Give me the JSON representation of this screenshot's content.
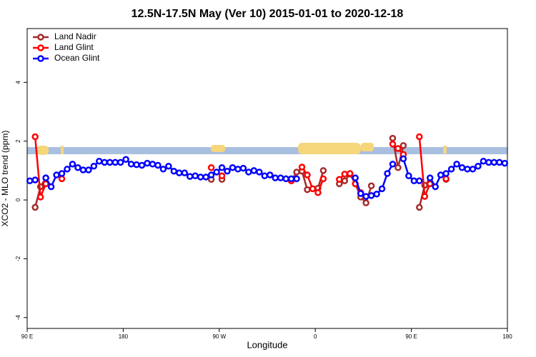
{
  "chart_data": {
    "type": "line",
    "title": "12.5N-17.5N May (Ver 10)   2015-01-01 to 2020-12-18",
    "xlabel": "Longitude",
    "ylabel": "XCO2 - MLO trend (ppm)",
    "x": [
      92.5,
      97.5,
      102.5,
      107.5,
      112.5,
      117.5,
      122.5,
      127.5,
      132.5,
      137.5,
      142.5,
      147.5,
      152.5,
      157.5,
      162.5,
      167.5,
      172.5,
      177.5,
      182.5,
      187.5,
      192.5,
      197.5,
      202.5,
      207.5,
      212.5,
      217.5,
      222.5,
      227.5,
      232.5,
      237.5,
      242.5,
      247.5,
      252.5,
      257.5,
      262.5,
      267.5,
      272.5,
      277.5,
      282.5,
      287.5,
      292.5,
      297.5,
      302.5,
      307.5,
      312.5,
      317.5,
      322.5,
      327.5,
      332.5,
      337.5,
      342.5,
      347.5,
      352.5,
      357.5,
      362.5,
      367.5,
      372.5,
      377.5,
      382.5,
      387.5,
      392.5,
      397.5,
      402.5,
      407.5,
      412.5,
      417.5,
      422.5,
      427.5,
      432.5,
      437.5,
      442.5,
      447.5,
      452.5,
      457.5,
      462.5,
      467.5,
      472.5,
      477.5,
      482.5,
      487.5,
      492.5,
      497.5,
      502.5,
      507.5,
      512.5,
      517.5,
      522.5,
      527.5,
      532.5,
      537.5
    ],
    "series": [
      {
        "name": "Land Nadir",
        "color": "#a52a2a",
        "values": [
          null,
          -0.25,
          0.45,
          0.75,
          null,
          null,
          null,
          null,
          null,
          null,
          null,
          null,
          null,
          null,
          null,
          null,
          null,
          null,
          null,
          null,
          null,
          null,
          null,
          null,
          null,
          null,
          null,
          null,
          null,
          null,
          null,
          null,
          null,
          null,
          0.7,
          null,
          0.7,
          null,
          null,
          null,
          null,
          null,
          null,
          null,
          null,
          null,
          null,
          null,
          null,
          0.65,
          0.95,
          0.98,
          0.35,
          null,
          0.4,
          1.0,
          null,
          null,
          0.55,
          0.65,
          0.88,
          0.55,
          0.1,
          -0.1,
          0.48,
          null,
          null,
          null,
          2.1,
          1.1,
          1.85,
          null,
          null,
          -0.25,
          0.5,
          0.6,
          null,
          null,
          0.7,
          null,
          null,
          null,
          null,
          null,
          null,
          null,
          null,
          null,
          null,
          null
        ]
      },
      {
        "name": "Land Glint",
        "color": "#ff0000",
        "values": [
          null,
          2.15,
          0.1,
          0.55,
          null,
          null,
          0.72,
          null,
          null,
          null,
          null,
          null,
          null,
          null,
          null,
          null,
          null,
          null,
          null,
          null,
          null,
          null,
          null,
          null,
          null,
          null,
          null,
          null,
          null,
          null,
          null,
          null,
          null,
          null,
          1.1,
          null,
          0.82,
          null,
          null,
          null,
          null,
          null,
          null,
          null,
          null,
          null,
          null,
          null,
          null,
          0.65,
          null,
          1.12,
          0.85,
          0.38,
          0.25,
          0.72,
          null,
          null,
          0.7,
          0.88,
          0.9,
          0.55,
          0.25,
          null,
          null,
          null,
          null,
          null,
          1.9,
          1.75,
          1.55,
          null,
          null,
          2.15,
          0.12,
          0.55,
          null,
          null,
          0.72,
          null,
          null,
          null,
          null,
          null,
          null,
          null,
          null,
          null,
          null,
          null
        ]
      },
      {
        "name": "Ocean Glint",
        "color": "#0000ff",
        "values": [
          0.65,
          0.68,
          null,
          0.75,
          0.45,
          0.85,
          0.9,
          1.05,
          1.22,
          1.1,
          1.02,
          1.02,
          1.15,
          1.32,
          1.28,
          1.28,
          1.28,
          1.28,
          1.38,
          1.22,
          1.2,
          1.18,
          1.25,
          1.22,
          1.18,
          1.05,
          1.15,
          0.98,
          0.92,
          0.92,
          0.8,
          0.82,
          0.78,
          0.78,
          0.85,
          0.95,
          1.1,
          0.98,
          1.1,
          1.05,
          1.08,
          0.95,
          1.0,
          0.95,
          0.82,
          0.85,
          0.75,
          0.75,
          0.72,
          0.72,
          0.72,
          null,
          null,
          null,
          null,
          null,
          null,
          null,
          null,
          null,
          null,
          0.75,
          0.22,
          0.12,
          0.15,
          0.2,
          0.38,
          0.9,
          1.22,
          null,
          1.4,
          0.82,
          0.65,
          0.65,
          null,
          0.75,
          0.45,
          0.85,
          0.9,
          1.05,
          1.22,
          1.1,
          1.05,
          1.05,
          1.15,
          1.32,
          1.28,
          1.28,
          1.28,
          1.25
        ]
      }
    ],
    "xlim": [
      90,
      540
    ],
    "xticks": [
      {
        "value": 90,
        "label": "90 E"
      },
      {
        "value": 180,
        "label": "180"
      },
      {
        "value": 270,
        "label": "90 W"
      },
      {
        "value": 360,
        "label": "0"
      },
      {
        "value": 450,
        "label": "90 E"
      },
      {
        "value": 540,
        "label": "180"
      }
    ],
    "ylim": [
      -4.37,
      5.83
    ],
    "yticks": [
      -4,
      -2,
      0,
      2,
      4
    ],
    "legend": "top-left"
  }
}
